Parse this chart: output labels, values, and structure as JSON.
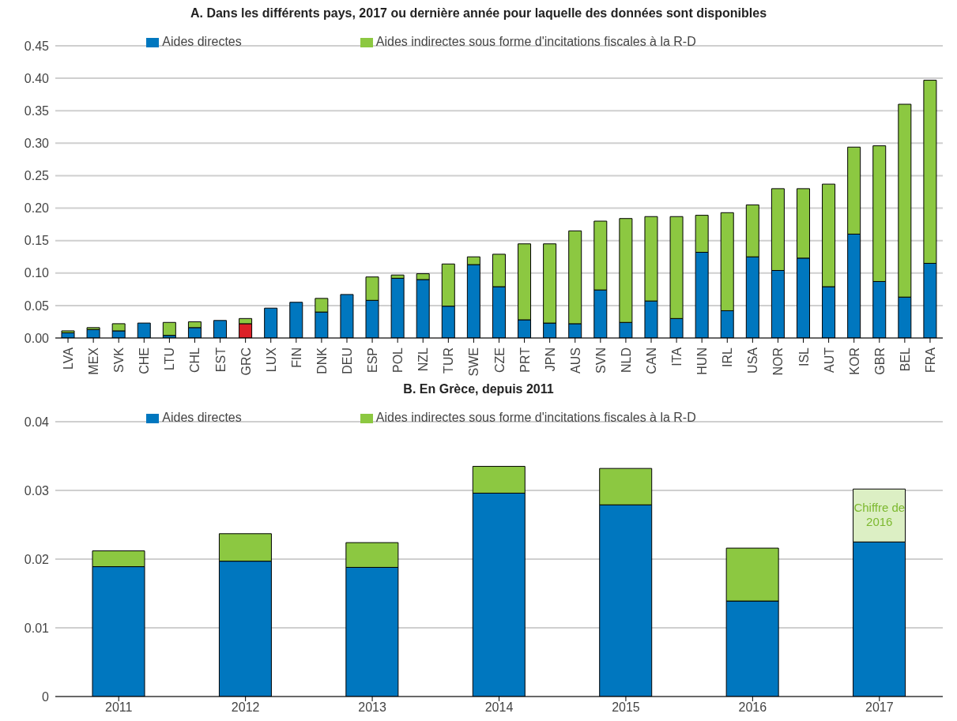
{
  "chart_data": [
    {
      "type": "bar",
      "title": "A. Dans les différents pays, 2017 ou dernière année pour laquelle des données sont disponibles",
      "categories": [
        "LVA",
        "MEX",
        "SVK",
        "CHE",
        "LTU",
        "CHL",
        "EST",
        "GRC",
        "LUX",
        "FIN",
        "DNK",
        "DEU",
        "ESP",
        "POL",
        "NZL",
        "TUR",
        "SWE",
        "CZE",
        "PRT",
        "JPN",
        "AUS",
        "SVN",
        "NLD",
        "CAN",
        "ITA",
        "HUN",
        "IRL",
        "USA",
        "NOR",
        "ISL",
        "AUT",
        "KOR",
        "GBR",
        "BEL",
        "FRA"
      ],
      "stacked": true,
      "series": [
        {
          "name": "Aides directes",
          "color": "#0077bf",
          "colors": [
            "#0077bf",
            "#0077bf",
            "#0077bf",
            "#0077bf",
            "#0077bf",
            "#0077bf",
            "#0077bf",
            "#dc2027",
            "#0077bf",
            "#0077bf",
            "#0077bf",
            "#0077bf",
            "#0077bf",
            "#0077bf",
            "#0077bf",
            "#0077bf",
            "#0077bf",
            "#0077bf",
            "#0077bf",
            "#0077bf",
            "#0077bf",
            "#0077bf",
            "#0077bf",
            "#0077bf",
            "#0077bf",
            "#0077bf",
            "#0077bf",
            "#0077bf",
            "#0077bf",
            "#0077bf",
            "#0077bf",
            "#0077bf",
            "#0077bf",
            "#0077bf",
            "#0077bf"
          ],
          "values": [
            0.008,
            0.013,
            0.011,
            0.023,
            0.004,
            0.016,
            0.027,
            0.022,
            0.046,
            0.055,
            0.04,
            0.067,
            0.058,
            0.092,
            0.09,
            0.049,
            0.113,
            0.079,
            0.028,
            0.023,
            0.022,
            0.074,
            0.024,
            0.057,
            0.03,
            0.132,
            0.042,
            0.125,
            0.104,
            0.123,
            0.079,
            0.16,
            0.087,
            0.063,
            0.115
          ]
        },
        {
          "name": "Aides indirectes sous forme d'incitations fiscales à la R-D",
          "color": "#8cc841",
          "values": [
            0.003,
            0.003,
            0.011,
            0,
            0.02,
            0.009,
            0,
            0.008,
            0,
            0,
            0.021,
            0,
            0.036,
            0.005,
            0.009,
            0.065,
            0.012,
            0.05,
            0.117,
            0.122,
            0.143,
            0.106,
            0.16,
            0.13,
            0.157,
            0.057,
            0.151,
            0.08,
            0.126,
            0.107,
            0.158,
            0.134,
            0.209,
            0.297,
            0.282
          ]
        }
      ],
      "ylim": [
        0,
        0.45
      ],
      "yticks": [
        {
          "value": 0,
          "label": "0.00"
        },
        0.05,
        {
          "value": 0.1,
          "label": "0.10"
        },
        0.15,
        {
          "value": 0.2,
          "label": "0.20"
        },
        0.25,
        {
          "value": 0.3,
          "label": "0.30"
        },
        0.35,
        {
          "value": 0.4,
          "label": "0.40"
        },
        0.45
      ],
      "grid": "y",
      "legend": "top"
    },
    {
      "type": "bar",
      "title": "B. En Grèce, depuis 2011",
      "categories": [
        "2011",
        "2012",
        "2013",
        "2014",
        "2015",
        "2016",
        "2017"
      ],
      "stacked": true,
      "series": [
        {
          "name": "Aides directes",
          "color": "#0077bf",
          "values": [
            0.0189,
            0.0197,
            0.0188,
            0.0296,
            0.0279,
            0.0139,
            0.0225
          ]
        },
        {
          "name": "Aides indirectes sous forme d'incitations fiscales à la R-D",
          "color": "#8cc841",
          "colors": [
            "#8cc841",
            "#8cc841",
            "#8cc841",
            "#8cc841",
            "#8cc841",
            "#8cc841",
            "#dcefc4"
          ],
          "values": [
            0.0023,
            0.004,
            0.0036,
            0.0039,
            0.0053,
            0.0077,
            0.0077
          ]
        }
      ],
      "annotations": [
        "Chiffre de 2016"
      ],
      "ylim": [
        0,
        0.04
      ],
      "yticks": [
        0,
        0.01,
        0.02,
        0.03,
        0.04
      ],
      "grid": "y",
      "legend": "top"
    }
  ]
}
